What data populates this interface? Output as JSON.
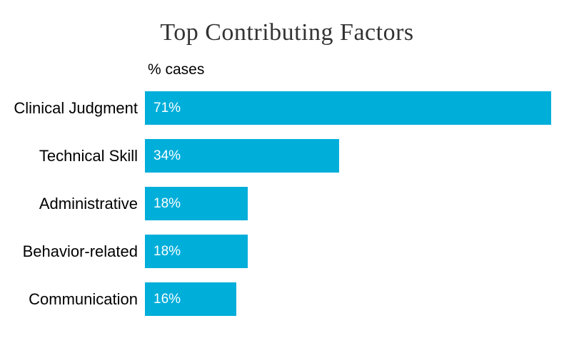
{
  "chart_data": {
    "type": "bar",
    "orientation": "horizontal",
    "title": "Top Contributing Factors",
    "xlabel": "% cases",
    "ylabel": "",
    "categories": [
      "Clinical Judgment",
      "Technical Skill",
      "Administrative",
      "Behavior-related",
      "Communication"
    ],
    "values": [
      71,
      34,
      18,
      18,
      16
    ],
    "value_labels": [
      "71%",
      "34%",
      "18%",
      "18%",
      "16%"
    ],
    "xlim": [
      0,
      71
    ],
    "grid": false,
    "legend": "none",
    "colors": {
      "bar": "#00AEDA",
      "value_label": "#FFFFFF",
      "title": "#333333",
      "category_label": "#000000",
      "background": "#FFFFFF"
    }
  }
}
